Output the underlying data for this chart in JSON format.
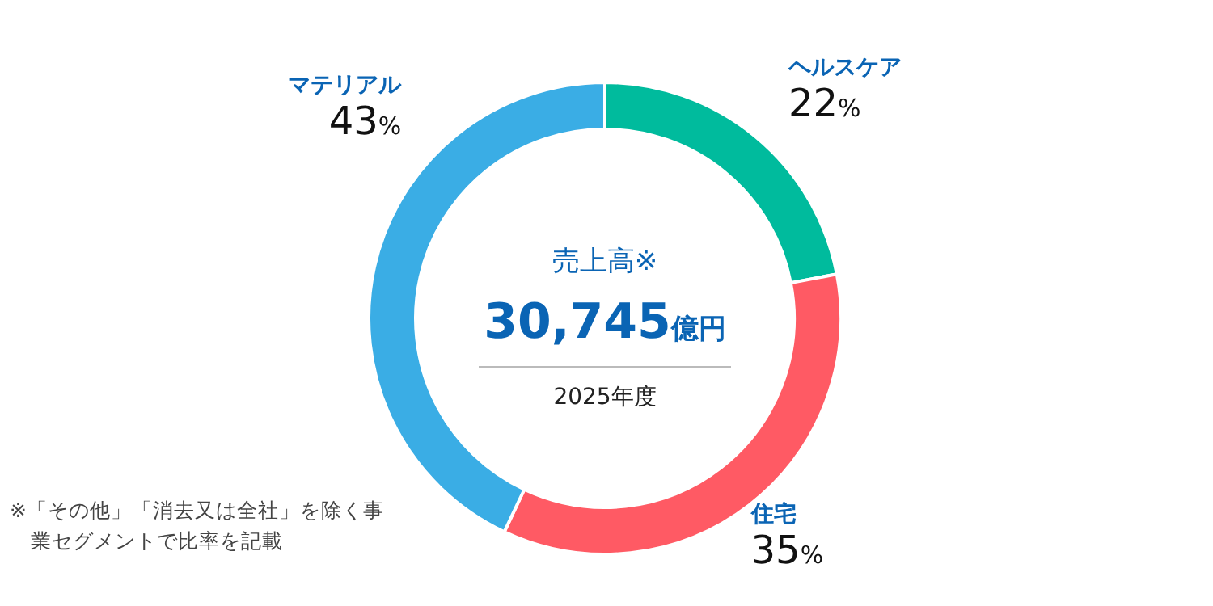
{
  "chart_data": {
    "type": "donut",
    "title": "売上高※",
    "subtitle": "30,745億円",
    "categories": [
      "ヘルスケア",
      "住宅",
      "マテリアル"
    ],
    "values": [
      22,
      35,
      43
    ],
    "colors": [
      "#00bb9d",
      "#ff5a64",
      "#3aade5"
    ],
    "value_labels": [
      "22%",
      "35%",
      "43%"
    ],
    "annotations": [
      "2025年度",
      "※「その他」「消去又は全社」を除く事業セグメントで比率を記載"
    ]
  }
}
